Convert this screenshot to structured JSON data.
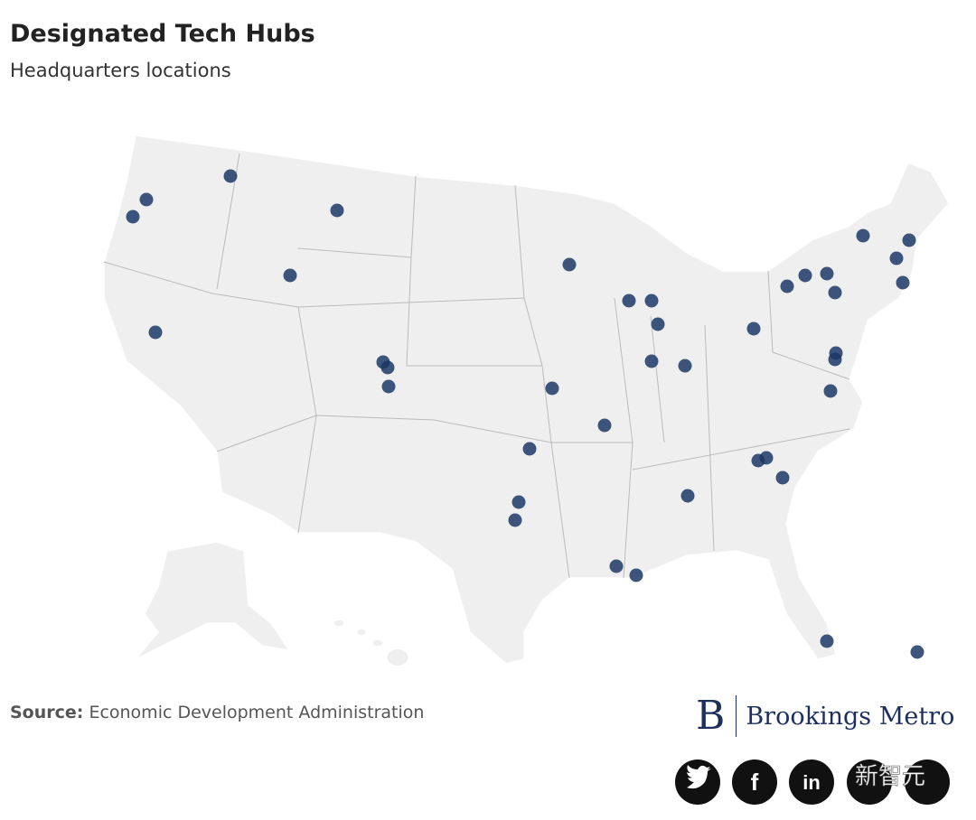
{
  "header": {
    "title": "Designated Tech Hubs",
    "subtitle": "Headquarters locations"
  },
  "footer": {
    "source_label": "Source:",
    "source_text": "Economic Development Administration",
    "brand_initial": "B",
    "brand_name": "Brookings Metro"
  },
  "social": {
    "facebook": "f",
    "linkedin": "in"
  },
  "watermark": "新智元"
}
